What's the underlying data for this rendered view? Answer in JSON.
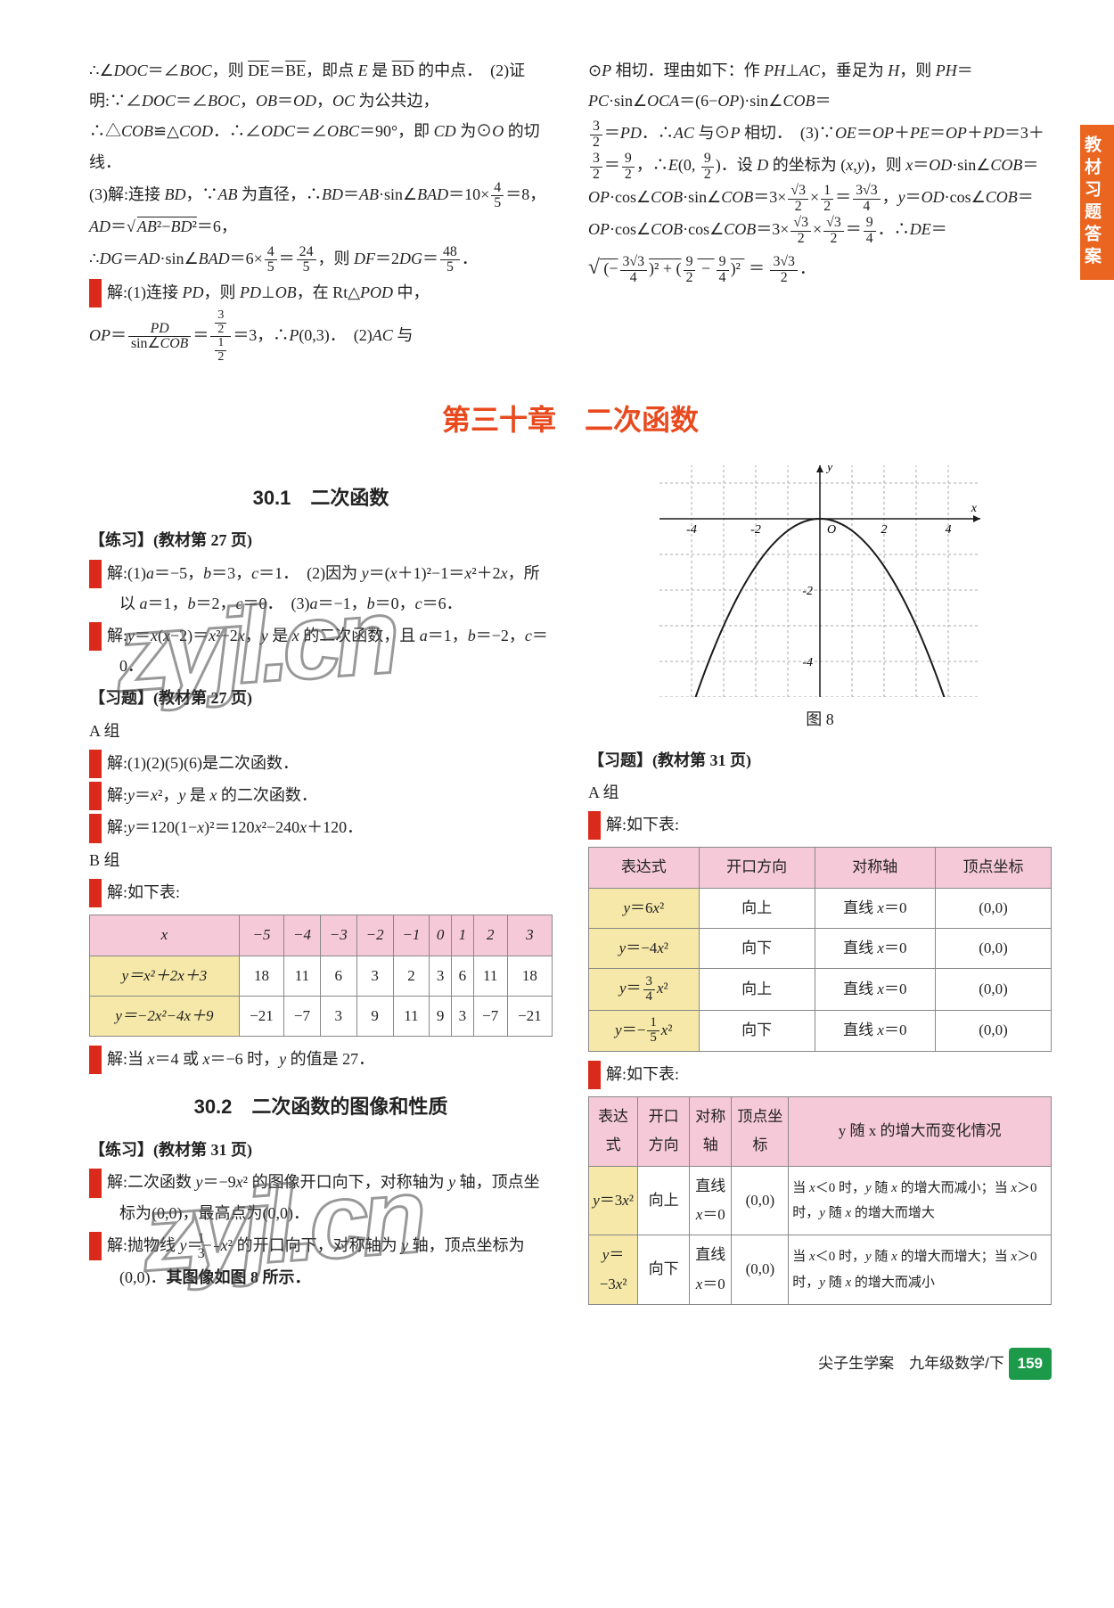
{
  "sideTab": "教材习题答案",
  "watermark": "zyjl.cn",
  "top": {
    "left": [
      "∴∠DOC＝∠BOC，则 D͡E＝B͡E，即点 E 是 B͡D 的中点．　(2)证明:∵∠DOC＝∠BOC，OB＝OD，OC 为公共边，∴△COB≌△COD．∴∠ODC＝∠OBC＝90°，即 CD 为⊙O 的切线．",
      "(3)解:连接 BD，∵AB 为直径，∴BD＝AB·sin∠BAD＝10×(4/5)＝8，AD＝√(AB²−BD²)＝6，",
      "∴DG＝AD·sin∠BAD＝6×(4/5)＝24/5，则 DF＝2DG＝48/5．",
      "[2] 解:(1)连接 PD，则 PD⊥OB，在 Rt△POD 中，",
      "OP＝ PD / sin∠COB ＝ (3/2)/(1/2) ＝3，∴P(0,3)．　(2)AC 与"
    ],
    "right": [
      "⊙P 相切．理由如下：作 PH⊥AC，垂足为 H，则 PH＝PC·sin∠OCA＝(6−OP)·sin∠COB＝",
      "3/2＝PD．∴AC 与⊙P 相切．　(3)∵OE＝OP＋PE＝OP＋PD＝3＋3/2＝9/2，∴E(0, 9/2)．设 D 的坐标为 (x,y)，则 x＝OD·sin∠COB＝OP·cos∠COB·sin∠COB＝3×(√3/2)×(1/2)＝3√3/4，y＝OD·cos∠COB＝OP·cos∠COB·cos∠COB＝3×(√3/2)×(√3/2)＝9/4．∴DE＝",
      "√[(−3√3/4)² + (9/2 − 9/4)²] ＝ 3√3/2．"
    ]
  },
  "chapterTitle": "第三十章　二次函数",
  "sections": {
    "s30_1": {
      "title": "30.1　二次函数",
      "practiceHead": "【练习】(教材第 27 页)",
      "items": [
        "[1] 解:(1)a＝−5，b＝3，c＝1．　(2)因为 y＝(x＋1)²−1＝x²＋2x，所以 a＝1，b＝2，c＝0．　(3)a＝−1，b＝0，c＝6．",
        "[2] 解: y＝x(x−2)＝x²−2x，y 是 x 的二次函数，且 a＝1，b＝−2，c＝0．"
      ],
      "exerciseHead": "【习题】(教材第 27 页)",
      "groupA": "A 组",
      "groupAItems": [
        "[1] 解:(1)(2)(5)(6)是二次函数．",
        "[2] 解: y＝x²，y 是 x 的二次函数．",
        "[3] 解: y＝120(1−x)²＝120x²−240x＋120．"
      ],
      "groupB": "B 组",
      "groupBHead": "[1] 解:如下表:",
      "table1": {
        "header": [
          "x",
          "−5",
          "−4",
          "−3",
          "−2",
          "−1",
          "0",
          "1",
          "2",
          "3"
        ],
        "rows": [
          [
            "y＝x²＋2x＋3",
            "18",
            "11",
            "6",
            "3",
            "2",
            "3",
            "6",
            "11",
            "18"
          ],
          [
            "y＝−2x²−4x＋9",
            "−21",
            "−7",
            "3",
            "9",
            "11",
            "9",
            "3",
            "−7",
            "−21"
          ]
        ]
      },
      "afterTable": "[2] 解:当 x＝4 或 x＝−6 时，y 的值是 27．"
    },
    "s30_2": {
      "title": "30.2　二次函数的图像和性质",
      "practiceHead": "【练习】(教材第 31 页)",
      "items": [
        "[1] 解:二次函数 y＝−9x² 的图像开口向下，对称轴为 y 轴，顶点坐标为(0,0)，最高点为(0,0)．",
        "[2] 解:抛物线 y＝−(1/3)x² 的开口向下，对称轴为 y 轴，顶点坐标为(0,0)．其图像如图 8 所示．"
      ]
    },
    "rightCol": {
      "figCaption": "图 8",
      "chart": {
        "type": "parabola",
        "expression": "y = −(1/3)x²",
        "vertex": [
          0,
          0
        ],
        "xlim": [
          -5,
          5
        ],
        "ylim": [
          -5,
          1.5
        ],
        "xticks": [
          -4,
          -2,
          2,
          4
        ],
        "yticks": [
          -2,
          -4
        ],
        "axis_color": "#1a1a1a",
        "curve_color": "#1a1a1a",
        "grid_color": "#a8a8a8",
        "grid_style": "dashed",
        "background": "#ffffff"
      },
      "exerciseHead": "【习题】(教材第 31 页)",
      "groupA": "A 组",
      "q1Head": "[1] 解:如下表:",
      "table2": {
        "headers": [
          "表达式",
          "开口方向",
          "对称轴",
          "顶点坐标"
        ],
        "rows": [
          [
            "y＝6x²",
            "向上",
            "直线 x＝0",
            "(0,0)"
          ],
          [
            "y＝−4x²",
            "向下",
            "直线 x＝0",
            "(0,0)"
          ],
          [
            "y＝(3/4)x²",
            "向上",
            "直线 x＝0",
            "(0,0)"
          ],
          [
            "y＝−(1/5)x²",
            "向下",
            "直线 x＝0",
            "(0,0)"
          ]
        ]
      },
      "q2Head": "[2] 解:如下表:",
      "table3": {
        "headers": [
          "表达式",
          "开口方向",
          "对称轴",
          "顶点坐标",
          "y 随 x 的增大而变化情况"
        ],
        "rows": [
          [
            "y＝3x²",
            "向上",
            "直线 x＝0",
            "(0,0)",
            "当 x＜0 时，y 随 x 的增大而减小；当 x＞0 时，y 随 x 的增大而增大"
          ],
          [
            "y＝−3x²",
            "向下",
            "直线 x＝0",
            "(0,0)",
            "当 x＜0 时，y 随 x 的增大而增大；当 x＞0 时，y 随 x 的增大而减小"
          ]
        ]
      }
    }
  },
  "footer": {
    "book": "尖子生学案　九年级数学/下",
    "page": "159"
  }
}
